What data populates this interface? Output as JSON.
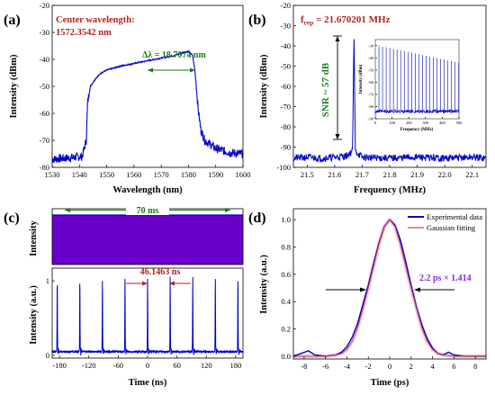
{
  "figure": {
    "panels": {
      "a": {
        "label": "(a)"
      },
      "b": {
        "label": "(b)"
      },
      "c": {
        "label": "(c)"
      },
      "d": {
        "label": "(d)"
      }
    }
  },
  "colors": {
    "trace_blue": "#0000cc",
    "annotation_red": "#b22222",
    "annotation_green": "#1a7a1a",
    "annotation_purple": "#8a2be2",
    "fit_line": "#c84b4b",
    "fit_glow": "#f0b8d0"
  },
  "chart_data": [
    {
      "id": "a",
      "type": "line",
      "title": "",
      "xlabel": "Wavelength (nm)",
      "ylabel": "Intensity (dBm)",
      "xlim": [
        1530,
        1600
      ],
      "ylim": [
        -80,
        -20
      ],
      "xticks": [
        "1530",
        "1540",
        "1550",
        "1560",
        "1570",
        "1580",
        "1590",
        "1600"
      ],
      "yticks": [
        "-80",
        "-70",
        "-60",
        "-50",
        "-40",
        "-30",
        "-20"
      ],
      "series": [
        {
          "color": "#0000cc",
          "x": [
            1530,
            1536,
            1541,
            1542.5,
            1543,
            1544,
            1546,
            1548,
            1550,
            1555,
            1560,
            1565,
            1570,
            1575,
            1578,
            1580,
            1581.5,
            1582.5,
            1583.5,
            1584.5,
            1586,
            1590,
            1595,
            1600
          ],
          "y": [
            -77,
            -76.5,
            -76,
            -70,
            -56,
            -50,
            -47,
            -45,
            -44,
            -42.5,
            -41.5,
            -40.5,
            -39.5,
            -38.5,
            -37.5,
            -37,
            -38.5,
            -45,
            -58,
            -66,
            -70,
            -73,
            -74.5,
            -75
          ]
        }
      ],
      "annotations": {
        "center_wavelength_label": "Center wavelength:",
        "center_wavelength_value": "1572.3542 nm",
        "bandwidth": "Δλ = 18.7074 nm"
      }
    },
    {
      "id": "b",
      "type": "line",
      "title": "",
      "xlabel": "Frequency (MHz)",
      "ylabel": "Intensity (dBm)",
      "xlim": [
        21.45,
        22.15
      ],
      "ylim": [
        -100,
        -20
      ],
      "xticks": [
        "21.5",
        "21.6",
        "21.7",
        "21.8",
        "21.9",
        "22.0",
        "22.1"
      ],
      "yticks": [
        "-100",
        "-90",
        "-80",
        "-70",
        "-60",
        "-50",
        "-40",
        "-30",
        "-20"
      ],
      "series": [
        {
          "color": "#0000cc",
          "x": [
            21.45,
            21.5,
            21.55,
            21.6,
            21.64,
            21.665,
            21.670201,
            21.675,
            21.7,
            21.8,
            21.9,
            22.0,
            22.1,
            22.15
          ],
          "y": [
            -95.5,
            -95,
            -95.5,
            -95,
            -94.5,
            -92,
            -33,
            -92,
            -95,
            -95.5,
            -95,
            -95.5,
            -95,
            -95.5
          ]
        }
      ],
      "annotations": {
        "frep": "f",
        "frep_sub": "rep",
        "frep_value": " = 21.670201 MHz",
        "snr": "SNR ~ 57 dB"
      },
      "inset": {
        "type": "line",
        "xlabel": "Frequency (MHz)",
        "ylabel": "Intensity (dBm)",
        "xlim": [
          0,
          500
        ],
        "ylim": [
          -90,
          -25
        ],
        "xticks": [
          "0",
          "100",
          "200",
          "300",
          "400",
          "500"
        ],
        "yticks": [
          "-90",
          "-80",
          "-70",
          "-60",
          "-50",
          "-40",
          "-30"
        ],
        "harmonic_spacing": 21.670201,
        "harmonic_peak_start": -30,
        "harmonic_peak_end": -44,
        "noise_floor": -84
      }
    },
    {
      "id": "c-top",
      "type": "area",
      "title": "",
      "xlabel": "",
      "ylabel": "Intensity",
      "fill_color": "#6a00cc",
      "annotations": {
        "span": "70 ms"
      }
    },
    {
      "id": "c-bottom",
      "type": "line",
      "title": "",
      "xlabel": "Time (ns)",
      "ylabel": "Intensity (a.u.)",
      "xlim": [
        -195,
        195
      ],
      "ylim": [
        0,
        1.05
      ],
      "xticks": [
        "-180",
        "-120",
        "-60",
        "0",
        "60",
        "120",
        "180"
      ],
      "yticks": [
        "0",
        "1"
      ],
      "pulse_times": [
        -184.67,
        -138.51,
        -92.35,
        -46.17,
        0,
        46.15,
        92.31,
        138.46,
        184.62
      ],
      "pulse_peak": 1.0,
      "baseline": 0.05,
      "annotations": {
        "period": "46.1463 ns"
      }
    },
    {
      "id": "d",
      "type": "line",
      "title": "",
      "xlabel": "Time (ps)",
      "ylabel": "Intensity (a.u.)",
      "xlim": [
        -9,
        9
      ],
      "ylim": [
        -0.02,
        1.08
      ],
      "xticks": [
        "-8",
        "-6",
        "-4",
        "-2",
        "0",
        "2",
        "4",
        "6",
        "8"
      ],
      "yticks": [
        "0.0",
        "0.2",
        "0.4",
        "0.6",
        "0.8",
        "1.0"
      ],
      "series": [
        {
          "name": "Experimental data",
          "color": "#0000cc",
          "x": [
            -9,
            -8.3,
            -7.6,
            -7,
            -6,
            -5,
            -4.5,
            -4,
            -3.5,
            -3,
            -2.5,
            -2,
            -1.5,
            -1,
            -0.5,
            0,
            0.5,
            1,
            1.5,
            2,
            2.5,
            3,
            3.5,
            4,
            4.5,
            5,
            5.5,
            6,
            7,
            8,
            9
          ],
          "y": [
            0.0,
            0.02,
            0.04,
            0.01,
            0.0,
            0.01,
            0.03,
            0.07,
            0.14,
            0.24,
            0.38,
            0.52,
            0.68,
            0.83,
            0.95,
            1.0,
            0.96,
            0.85,
            0.69,
            0.52,
            0.36,
            0.23,
            0.13,
            0.06,
            0.02,
            0.01,
            0.03,
            0.01,
            0.0,
            0.0,
            0.0
          ]
        },
        {
          "name": "Gaussian fitting",
          "color": "#c84b4b",
          "x": [
            -9,
            -8,
            -7,
            -6,
            -5,
            -4.5,
            -4,
            -3.5,
            -3,
            -2.5,
            -2,
            -1.5,
            -1,
            -0.5,
            0,
            0.5,
            1,
            1.5,
            2,
            2.5,
            3,
            3.5,
            4,
            4.5,
            5,
            6,
            7,
            8,
            9
          ],
          "y": [
            0,
            0,
            0,
            0,
            0.01,
            0.02,
            0.05,
            0.11,
            0.21,
            0.35,
            0.5,
            0.66,
            0.82,
            0.95,
            1.0,
            0.95,
            0.82,
            0.66,
            0.5,
            0.35,
            0.21,
            0.11,
            0.05,
            0.02,
            0.01,
            0,
            0,
            0,
            0
          ]
        }
      ],
      "annotations": {
        "fwhm": "2.2 ps × 1.414"
      },
      "legend": "top-right"
    }
  ]
}
